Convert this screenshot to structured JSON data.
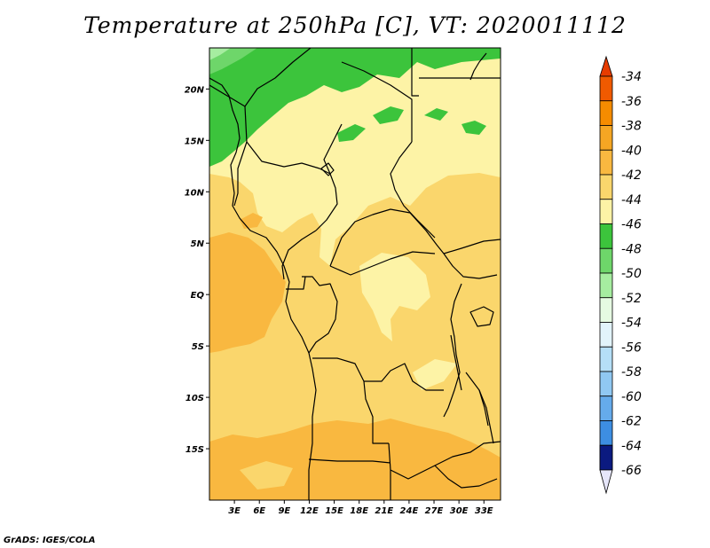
{
  "title": "Temperature at 250hPa [C], VT: 2020011112",
  "credit": "GrADS: IGES/COLA",
  "map": {
    "lon_range": [
      0,
      35
    ],
    "lat_range": [
      -20,
      24
    ],
    "lon_ticks": [
      {
        "value": 3,
        "label": "3E"
      },
      {
        "value": 6,
        "label": "6E"
      },
      {
        "value": 9,
        "label": "9E"
      },
      {
        "value": 12,
        "label": "12E"
      },
      {
        "value": 15,
        "label": "15E"
      },
      {
        "value": 18,
        "label": "18E"
      },
      {
        "value": 21,
        "label": "21E"
      },
      {
        "value": 24,
        "label": "24E"
      },
      {
        "value": 27,
        "label": "27E"
      },
      {
        "value": 30,
        "label": "30E"
      },
      {
        "value": 33,
        "label": "33E"
      }
    ],
    "lat_ticks": [
      {
        "value": 20,
        "label": "20N"
      },
      {
        "value": 15,
        "label": "15N"
      },
      {
        "value": 10,
        "label": "10N"
      },
      {
        "value": 5,
        "label": "5N"
      },
      {
        "value": 0,
        "label": "EQ"
      },
      {
        "value": -5,
        "label": "5S"
      },
      {
        "value": -10,
        "label": "10S"
      },
      {
        "value": -15,
        "label": "15S"
      }
    ]
  },
  "colorbar": {
    "levels": [
      {
        "label": "-34",
        "color": "#f05a00"
      },
      {
        "label": "-36",
        "color": "#f58c00"
      },
      {
        "label": "-38",
        "color": "#f5a623"
      },
      {
        "label": "-40",
        "color": "#f9b840"
      },
      {
        "label": "-42",
        "color": "#fad66c"
      },
      {
        "label": "-44",
        "color": "#fdf3a6"
      },
      {
        "label": "-46",
        "color": "#3cc43c"
      },
      {
        "label": "-48",
        "color": "#6ed66a"
      },
      {
        "label": "-50",
        "color": "#a6eda0"
      },
      {
        "label": "-52",
        "color": "#e6fbe2"
      },
      {
        "label": "-54",
        "color": "#e2f4fb"
      },
      {
        "label": "-56",
        "color": "#b5dff7"
      },
      {
        "label": "-58",
        "color": "#90c8f2"
      },
      {
        "label": "-60",
        "color": "#65abeb"
      },
      {
        "label": "-62",
        "color": "#3d8ee2"
      },
      {
        "label": "-64",
        "color": "#2266d0"
      },
      {
        "label": "-66",
        "color": "#1146b4"
      }
    ],
    "top_color": "#e63c00",
    "bottom_color": "#0b1a80",
    "bottom_arrow_color": "#e6e6fa"
  }
}
